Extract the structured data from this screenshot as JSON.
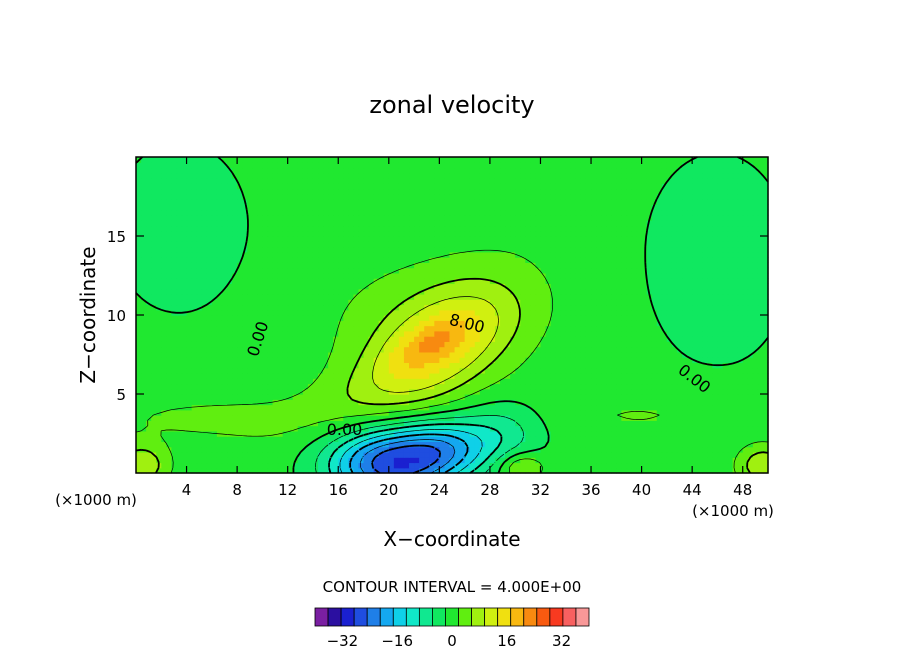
{
  "chart_data": {
    "type": "heatmap",
    "title": "zonal velocity",
    "xlabel": "X−coordinate",
    "ylabel": "Z−coordinate",
    "x_unit_label": "(×1000 m)",
    "xlim": [
      0,
      50
    ],
    "ylim": [
      0,
      20
    ],
    "x_ticks": [
      4,
      8,
      12,
      16,
      20,
      24,
      28,
      32,
      36,
      40,
      44,
      48
    ],
    "y_ticks": [
      5,
      10,
      15
    ],
    "contour_interval_text": "CONTOUR INTERVAL = 4.000E+00",
    "contour_labels": [
      {
        "text": "0.00",
        "x": 9.6,
        "z": 8.5,
        "angle": -72
      },
      {
        "text": "8.00",
        "x": 26.2,
        "z": 9.5,
        "angle": 14
      },
      {
        "text": "0.00",
        "x": 16.5,
        "z": 2.8,
        "angle": 0
      },
      {
        "text": "0.00",
        "x": 44.2,
        "z": 6.0,
        "angle": 38
      }
    ],
    "colorbar": {
      "levels": [
        -40,
        -36,
        -32,
        -28,
        -24,
        -20,
        -16,
        -12,
        -8,
        -4,
        0,
        4,
        8,
        12,
        16,
        20,
        24,
        28,
        32,
        36,
        40
      ],
      "tick_values": [
        -32,
        -16,
        0,
        16,
        32
      ],
      "tick_labels": [
        "−32",
        "−16",
        "0",
        "16",
        "32"
      ],
      "colors": [
        "#7a1fa2",
        "#2b0fa0",
        "#1a20d0",
        "#1f4de0",
        "#1f7fe8",
        "#14a8f0",
        "#0fd0e8",
        "#10e8c8",
        "#10e890",
        "#10e860",
        "#20e830",
        "#60ee10",
        "#a0f010",
        "#d0f010",
        "#f0e010",
        "#f8b810",
        "#f88a10",
        "#f85a10",
        "#f83a20",
        "#f86060",
        "#f89898"
      ]
    },
    "field": {
      "background_value": 2,
      "features": [
        {
          "kind": "jet",
          "x": 23.8,
          "z": 7.9,
          "sx": 4.8,
          "sz": 2.3,
          "rot": 0.5,
          "amp": 12
        },
        {
          "kind": "jet-core",
          "x": 23.5,
          "z": 8.4,
          "sx": 2.3,
          "sz": 0.9,
          "rot": 0.35,
          "amp": 7
        },
        {
          "kind": "outer-halo",
          "x": 23.0,
          "z": 9.8,
          "sx": 5.8,
          "sz": 2.5,
          "rot": 0.0,
          "amp": 3.5
        },
        {
          "kind": "sheared-tongue",
          "x": 20.5,
          "z": 6.2,
          "sx": 6.5,
          "sz": 1.4,
          "rot": 0.35,
          "amp": 3
        },
        {
          "kind": "reverse-flow",
          "x": 20.0,
          "z": 0.6,
          "sx": 3.4,
          "sz": 1.6,
          "rot": 0.0,
          "amp": -28
        },
        {
          "kind": "reverse-flow-2",
          "x": 24.5,
          "z": 1.6,
          "sx": 2.6,
          "sz": 1.3,
          "rot": 0.0,
          "amp": -14
        },
        {
          "kind": "reverse-flow-3",
          "x": 29.0,
          "z": 2.6,
          "sx": 2.4,
          "sz": 1.4,
          "rot": 0.0,
          "amp": -7
        },
        {
          "kind": "left-aloft-zero",
          "x": 3.5,
          "z": 15.5,
          "sx": 6.0,
          "sz": 6.0,
          "rot": 0.0,
          "amp": -3
        },
        {
          "kind": "right-aloft-zero",
          "x": 46.0,
          "z": 13.5,
          "sx": 6.5,
          "sz": 7.5,
          "rot": 0.0,
          "amp": -3
        },
        {
          "kind": "low-left-band",
          "x": 6.0,
          "z": 3.5,
          "sx": 7.0,
          "sz": 1.2,
          "rot": 0.0,
          "amp": 3
        },
        {
          "kind": "low-right-band",
          "x": 41.0,
          "z": 3.7,
          "sx": 5.5,
          "sz": 1.0,
          "rot": 0.0,
          "amp": 3
        },
        {
          "kind": "corner-spot-left",
          "x": 0.4,
          "z": 0.5,
          "sx": 1.4,
          "sz": 0.9,
          "rot": 0.0,
          "amp": 10
        },
        {
          "kind": "corner-spot-right",
          "x": 49.6,
          "z": 0.5,
          "sx": 1.4,
          "sz": 0.9,
          "rot": 0.0,
          "amp": 10
        },
        {
          "kind": "surface-spot",
          "x": 30.5,
          "z": 0.4,
          "sx": 1.2,
          "sz": 0.6,
          "rot": 0.0,
          "amp": 8
        }
      ]
    }
  }
}
